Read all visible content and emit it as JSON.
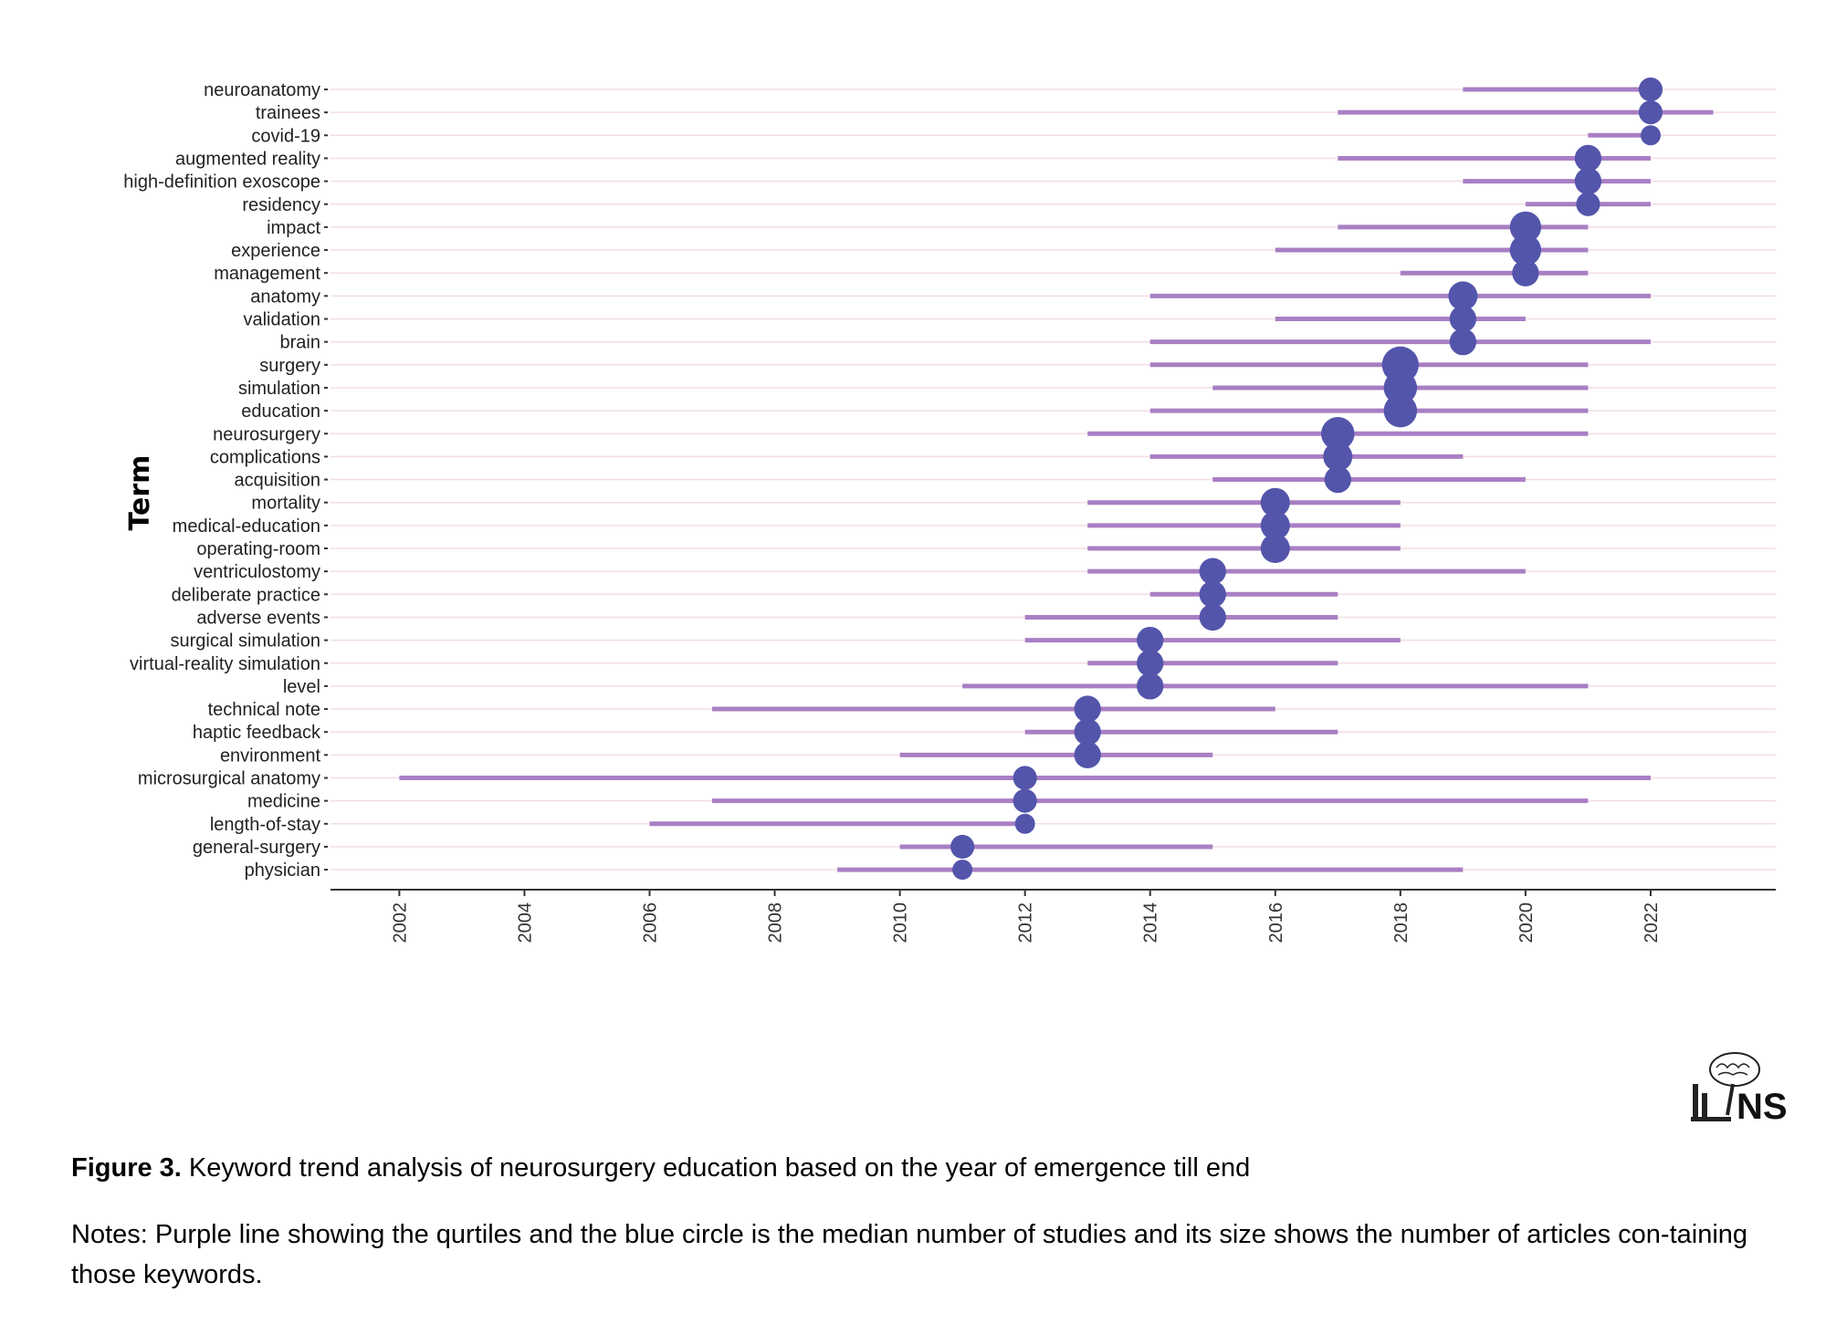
{
  "chart_data": {
    "type": "scatter",
    "ylabel": "Term",
    "xlabel": "",
    "xlim": [
      2000.9,
      2024
    ],
    "x_ticks": [
      2002,
      2004,
      2006,
      2008,
      2010,
      2012,
      2014,
      2016,
      2018,
      2020,
      2022
    ],
    "grid": "horizontal",
    "colors": {
      "range_line": "#a97fc4",
      "median_point": "#5355ab",
      "grid": "#f2dde6",
      "axis": "#333333"
    },
    "terms": [
      {
        "term": "neuroanatomy",
        "start": 2019,
        "median": 2022,
        "end": 2022,
        "size": 2
      },
      {
        "term": "trainees",
        "start": 2017,
        "median": 2022,
        "end": 2023,
        "size": 2
      },
      {
        "term": "covid-19",
        "start": 2021,
        "median": 2022,
        "end": 2022,
        "size": 1
      },
      {
        "term": "augmented reality",
        "start": 2017,
        "median": 2021,
        "end": 2022,
        "size": 3
      },
      {
        "term": "high-definition exoscope",
        "start": 2019,
        "median": 2021,
        "end": 2022,
        "size": 3
      },
      {
        "term": "residency",
        "start": 2020,
        "median": 2021,
        "end": 2022,
        "size": 2
      },
      {
        "term": "impact",
        "start": 2017,
        "median": 2020,
        "end": 2021,
        "size": 5
      },
      {
        "term": "experience",
        "start": 2016,
        "median": 2020,
        "end": 2021,
        "size": 5
      },
      {
        "term": "management",
        "start": 2018,
        "median": 2020,
        "end": 2021,
        "size": 3
      },
      {
        "term": "anatomy",
        "start": 2014,
        "median": 2019,
        "end": 2022,
        "size": 4
      },
      {
        "term": "validation",
        "start": 2016,
        "median": 2019,
        "end": 2020,
        "size": 3
      },
      {
        "term": "brain",
        "start": 2014,
        "median": 2019,
        "end": 2022,
        "size": 3
      },
      {
        "term": "surgery",
        "start": 2014,
        "median": 2018,
        "end": 2021,
        "size": 8
      },
      {
        "term": "simulation",
        "start": 2015,
        "median": 2018,
        "end": 2021,
        "size": 6
      },
      {
        "term": "education",
        "start": 2014,
        "median": 2018,
        "end": 2021,
        "size": 6
      },
      {
        "term": "neurosurgery",
        "start": 2013,
        "median": 2017,
        "end": 2021,
        "size": 6
      },
      {
        "term": "complications",
        "start": 2014,
        "median": 2017,
        "end": 2019,
        "size": 4
      },
      {
        "term": "acquisition",
        "start": 2015,
        "median": 2017,
        "end": 2020,
        "size": 3
      },
      {
        "term": "mortality",
        "start": 2013,
        "median": 2016,
        "end": 2018,
        "size": 4
      },
      {
        "term": "medical-education",
        "start": 2013,
        "median": 2016,
        "end": 2018,
        "size": 4
      },
      {
        "term": "operating-room",
        "start": 2013,
        "median": 2016,
        "end": 2018,
        "size": 4
      },
      {
        "term": "ventriculostomy",
        "start": 2013,
        "median": 2015,
        "end": 2020,
        "size": 3
      },
      {
        "term": "deliberate practice",
        "start": 2014,
        "median": 2015,
        "end": 2017,
        "size": 3
      },
      {
        "term": "adverse events",
        "start": 2012,
        "median": 2015,
        "end": 2017,
        "size": 3
      },
      {
        "term": "surgical simulation",
        "start": 2012,
        "median": 2014,
        "end": 2018,
        "size": 3
      },
      {
        "term": "virtual-reality simulation",
        "start": 2013,
        "median": 2014,
        "end": 2017,
        "size": 3
      },
      {
        "term": "level",
        "start": 2011,
        "median": 2014,
        "end": 2021,
        "size": 3
      },
      {
        "term": "technical note",
        "start": 2007,
        "median": 2013,
        "end": 2016,
        "size": 3
      },
      {
        "term": "haptic feedback",
        "start": 2012,
        "median": 2013,
        "end": 2017,
        "size": 3
      },
      {
        "term": "environment",
        "start": 2010,
        "median": 2013,
        "end": 2015,
        "size": 3
      },
      {
        "term": "microsurgical anatomy",
        "start": 2002,
        "median": 2012,
        "end": 2022,
        "size": 2
      },
      {
        "term": "medicine",
        "start": 2007,
        "median": 2012,
        "end": 2021,
        "size": 2
      },
      {
        "term": "length-of-stay",
        "start": 2006,
        "median": 2012,
        "end": 2012,
        "size": 1
      },
      {
        "term": "general-surgery",
        "start": 2010,
        "median": 2011,
        "end": 2015,
        "size": 2
      },
      {
        "term": "physician",
        "start": 2009,
        "median": 2011,
        "end": 2019,
        "size": 1
      }
    ]
  },
  "caption": {
    "figure_label": "Figure 3.",
    "title": "Keyword trend analysis of neurosurgery education based on the year of emergence till end",
    "notes": "Notes: Purple line showing the qurtiles and the blue circle is the median number of studies and its size shows the number of articles con-taining those keywords."
  },
  "logo": {
    "text": "NS",
    "icon": "brain-logo-icon"
  }
}
